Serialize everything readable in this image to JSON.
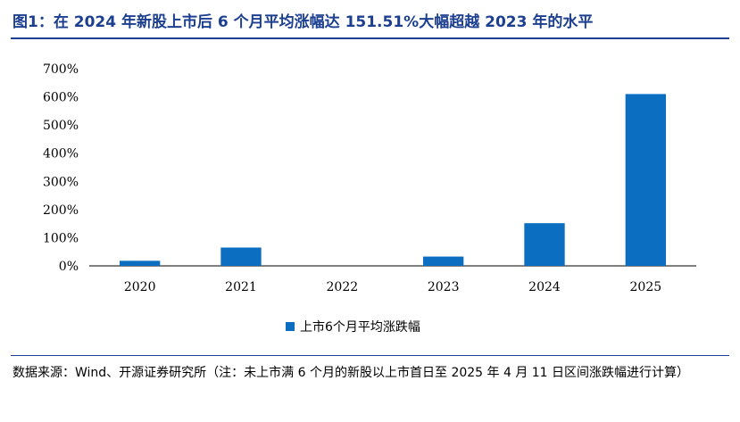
{
  "figure": {
    "title": "图1：在 2024 年新股上市后 6 个月平均涨幅达 151.51%大幅超越 2023 年的水平",
    "source": "数据来源：Wind、开源证券研究所（注：未上市满 6 个月的新股以上市首日至 2025 年 4 月 11 日区间涨跌幅进行计算）"
  },
  "chart_data": {
    "type": "bar",
    "categories": [
      "2020",
      "2021",
      "2022",
      "2023",
      "2024",
      "2025"
    ],
    "series": [
      {
        "name": "上市6个月平均涨跌幅",
        "values": [
          18,
          65,
          0,
          33,
          151.51,
          610
        ]
      }
    ],
    "ylim": [
      0,
      700
    ],
    "yticks": [
      0,
      100,
      200,
      300,
      400,
      500,
      600,
      700
    ],
    "ytick_labels": [
      "0%",
      "100%",
      "200%",
      "300%",
      "400%",
      "500%",
      "600%",
      "700%"
    ],
    "grid": false,
    "legend": "bottom",
    "bar_color": "#0b6ec1"
  }
}
